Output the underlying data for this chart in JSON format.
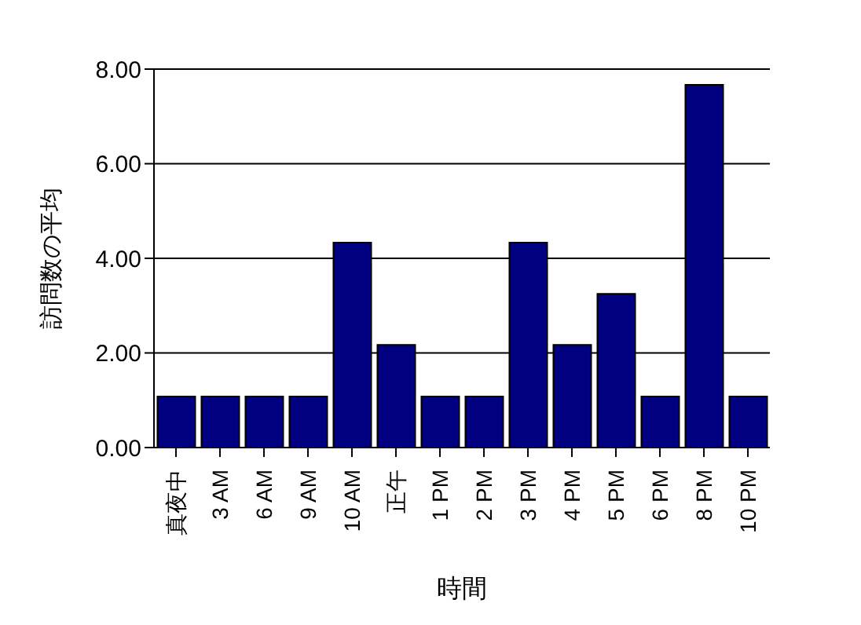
{
  "chart_data": {
    "type": "bar",
    "xlabel": "時間",
    "ylabel": "訪問数の平均",
    "categories": [
      "真夜中",
      "3 AM",
      "6 AM",
      "9 AM",
      "10 AM",
      "正午",
      "1 PM",
      "2 PM",
      "3 PM",
      "4 PM",
      "5 PM",
      "6 PM",
      "8 PM",
      "10 PM"
    ],
    "values": [
      1.08,
      1.08,
      1.08,
      1.08,
      4.33,
      2.17,
      1.08,
      1.08,
      4.33,
      2.17,
      3.25,
      1.08,
      7.67,
      1.08
    ],
    "color": "#000080",
    "ylim": [
      0,
      8
    ],
    "yticks": [
      {
        "value": 0,
        "label": "0.00"
      },
      {
        "value": 2,
        "label": "2.00"
      },
      {
        "value": 4,
        "label": "4.00"
      },
      {
        "value": 6,
        "label": "6.00"
      },
      {
        "value": 8,
        "label": "8.00"
      }
    ],
    "grid": "y",
    "legend": false
  }
}
